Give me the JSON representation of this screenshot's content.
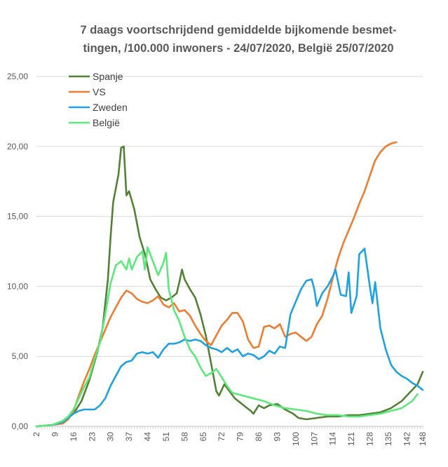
{
  "chart_data": {
    "type": "line",
    "title_line1": "7 daags voortschrijdend gemiddelde bijkomende besmet-",
    "title_line2": "tingen, /100.000 inwoners - 24/07/2020,  België 25/07/2020",
    "xlabel": "",
    "ylabel": "",
    "xlim": [
      2,
      148
    ],
    "ylim": [
      0,
      25
    ],
    "yticks": [
      "0,00",
      "5,00",
      "10,00",
      "15,00",
      "20,00",
      "25,00"
    ],
    "xticks": [
      "2",
      "9",
      "16",
      "23",
      "30",
      "37",
      "44",
      "51",
      "58",
      "65",
      "72",
      "79",
      "86",
      "93",
      "100",
      "107",
      "114",
      "121",
      "128",
      "135",
      "142",
      "148"
    ],
    "grid": true,
    "legend_position": "top-left",
    "series": [
      {
        "name": "Spanje",
        "color": "#538135",
        "points": [
          [
            2,
            0.0
          ],
          [
            8,
            0.1
          ],
          [
            12,
            0.3
          ],
          [
            16,
            0.9
          ],
          [
            19,
            1.8
          ],
          [
            22,
            3.3
          ],
          [
            25,
            5.3
          ],
          [
            27,
            7.0
          ],
          [
            29,
            10.5
          ],
          [
            30,
            13.5
          ],
          [
            31,
            16.0
          ],
          [
            33,
            18.0
          ],
          [
            34,
            19.9
          ],
          [
            35,
            20.0
          ],
          [
            36,
            16.5
          ],
          [
            37,
            16.8
          ],
          [
            39,
            15.5
          ],
          [
            41,
            13.5
          ],
          [
            43,
            12.3
          ],
          [
            45,
            10.5
          ],
          [
            47,
            9.8
          ],
          [
            49,
            9.2
          ],
          [
            51,
            9.0
          ],
          [
            53,
            9.2
          ],
          [
            55,
            9.5
          ],
          [
            56,
            10.3
          ],
          [
            57,
            11.2
          ],
          [
            58,
            10.5
          ],
          [
            60,
            9.8
          ],
          [
            62,
            9.2
          ],
          [
            64,
            8.0
          ],
          [
            66,
            6.5
          ],
          [
            68,
            4.5
          ],
          [
            70,
            2.5
          ],
          [
            71,
            2.2
          ],
          [
            73,
            3.0
          ],
          [
            75,
            2.5
          ],
          [
            77,
            2.0
          ],
          [
            79,
            1.7
          ],
          [
            81,
            1.4
          ],
          [
            83,
            1.1
          ],
          [
            84,
            0.9
          ],
          [
            86,
            1.5
          ],
          [
            88,
            1.3
          ],
          [
            90,
            1.5
          ],
          [
            93,
            1.6
          ],
          [
            96,
            1.2
          ],
          [
            99,
            0.9
          ],
          [
            101,
            0.6
          ],
          [
            104,
            0.5
          ],
          [
            108,
            0.6
          ],
          [
            112,
            0.7
          ],
          [
            116,
            0.7
          ],
          [
            120,
            0.8
          ],
          [
            124,
            0.8
          ],
          [
            128,
            0.9
          ],
          [
            132,
            1.0
          ],
          [
            136,
            1.3
          ],
          [
            140,
            1.8
          ],
          [
            143,
            2.4
          ],
          [
            146,
            3.0
          ],
          [
            148,
            3.9
          ]
        ]
      },
      {
        "name": "VS",
        "color": "#ED7D31",
        "points": [
          [
            2,
            0.0
          ],
          [
            8,
            0.1
          ],
          [
            12,
            0.2
          ],
          [
            14,
            0.5
          ],
          [
            16,
            1.1
          ],
          [
            18,
            2.2
          ],
          [
            20,
            3.2
          ],
          [
            22,
            4.1
          ],
          [
            24,
            5.1
          ],
          [
            26,
            6.0
          ],
          [
            28,
            6.9
          ],
          [
            30,
            7.8
          ],
          [
            32,
            8.5
          ],
          [
            34,
            9.2
          ],
          [
            36,
            9.7
          ],
          [
            38,
            9.5
          ],
          [
            40,
            9.1
          ],
          [
            42,
            8.9
          ],
          [
            44,
            8.8
          ],
          [
            46,
            9.0
          ],
          [
            48,
            9.3
          ],
          [
            50,
            8.7
          ],
          [
            52,
            8.5
          ],
          [
            54,
            8.8
          ],
          [
            56,
            8.2
          ],
          [
            58,
            8.3
          ],
          [
            60,
            7.9
          ],
          [
            62,
            7.2
          ],
          [
            64,
            6.6
          ],
          [
            66,
            6.1
          ],
          [
            68,
            5.8
          ],
          [
            70,
            6.5
          ],
          [
            72,
            7.2
          ],
          [
            74,
            7.6
          ],
          [
            76,
            8.1
          ],
          [
            78,
            8.1
          ],
          [
            80,
            7.5
          ],
          [
            82,
            6.2
          ],
          [
            84,
            5.6
          ],
          [
            86,
            5.7
          ],
          [
            88,
            7.1
          ],
          [
            90,
            7.2
          ],
          [
            92,
            7.0
          ],
          [
            94,
            7.3
          ],
          [
            96,
            6.4
          ],
          [
            98,
            6.6
          ],
          [
            100,
            6.7
          ],
          [
            102,
            6.4
          ],
          [
            104,
            6.1
          ],
          [
            106,
            6.4
          ],
          [
            108,
            7.3
          ],
          [
            110,
            7.9
          ],
          [
            112,
            9.1
          ],
          [
            114,
            10.6
          ],
          [
            116,
            12.0
          ],
          [
            118,
            13.1
          ],
          [
            120,
            14.0
          ],
          [
            122,
            14.9
          ],
          [
            124,
            15.9
          ],
          [
            126,
            16.8
          ],
          [
            128,
            17.9
          ],
          [
            130,
            19.0
          ],
          [
            132,
            19.6
          ],
          [
            134,
            20.0
          ],
          [
            136,
            20.2
          ],
          [
            138,
            20.3
          ]
        ]
      },
      {
        "name": "Zweden",
        "color": "#1FA2DF",
        "points": [
          [
            2,
            0.0
          ],
          [
            8,
            0.1
          ],
          [
            12,
            0.3
          ],
          [
            14,
            0.6
          ],
          [
            16,
            0.9
          ],
          [
            18,
            1.1
          ],
          [
            20,
            1.2
          ],
          [
            24,
            1.2
          ],
          [
            26,
            1.5
          ],
          [
            28,
            2.0
          ],
          [
            30,
            2.9
          ],
          [
            32,
            3.6
          ],
          [
            34,
            4.3
          ],
          [
            36,
            4.6
          ],
          [
            38,
            4.7
          ],
          [
            40,
            5.2
          ],
          [
            42,
            5.3
          ],
          [
            44,
            5.2
          ],
          [
            46,
            5.3
          ],
          [
            48,
            4.9
          ],
          [
            50,
            5.5
          ],
          [
            52,
            5.9
          ],
          [
            54,
            5.9
          ],
          [
            56,
            6.0
          ],
          [
            58,
            6.2
          ],
          [
            60,
            6.1
          ],
          [
            62,
            6.2
          ],
          [
            64,
            6.1
          ],
          [
            66,
            5.8
          ],
          [
            68,
            5.6
          ],
          [
            70,
            5.5
          ],
          [
            72,
            5.3
          ],
          [
            74,
            5.6
          ],
          [
            76,
            5.3
          ],
          [
            78,
            5.5
          ],
          [
            80,
            5.0
          ],
          [
            82,
            5.2
          ],
          [
            84,
            5.1
          ],
          [
            86,
            4.8
          ],
          [
            88,
            5.0
          ],
          [
            90,
            5.4
          ],
          [
            92,
            5.2
          ],
          [
            94,
            5.7
          ],
          [
            96,
            5.6
          ],
          [
            98,
            8.0
          ],
          [
            100,
            8.9
          ],
          [
            102,
            9.8
          ],
          [
            104,
            10.4
          ],
          [
            106,
            10.5
          ],
          [
            107,
            9.8
          ],
          [
            108,
            8.6
          ],
          [
            110,
            9.5
          ],
          [
            112,
            10.0
          ],
          [
            114,
            10.7
          ],
          [
            115,
            11.2
          ],
          [
            117,
            9.4
          ],
          [
            119,
            9.3
          ],
          [
            120,
            11.0
          ],
          [
            121,
            8.1
          ],
          [
            123,
            9.3
          ],
          [
            124,
            12.3
          ],
          [
            126,
            12.7
          ],
          [
            128,
            10.0
          ],
          [
            129,
            8.8
          ],
          [
            130,
            10.3
          ],
          [
            132,
            7.0
          ],
          [
            134,
            5.5
          ],
          [
            136,
            4.4
          ],
          [
            138,
            3.9
          ],
          [
            140,
            3.6
          ],
          [
            142,
            3.4
          ],
          [
            144,
            3.1
          ],
          [
            146,
            2.9
          ],
          [
            148,
            2.6
          ]
        ]
      },
      {
        "name": "België",
        "color": "#5CE87A",
        "points": [
          [
            2,
            0.0
          ],
          [
            8,
            0.1
          ],
          [
            12,
            0.4
          ],
          [
            14,
            0.7
          ],
          [
            16,
            1.2
          ],
          [
            18,
            2.0
          ],
          [
            20,
            2.8
          ],
          [
            22,
            3.5
          ],
          [
            24,
            4.8
          ],
          [
            26,
            6.0
          ],
          [
            28,
            8.0
          ],
          [
            30,
            10.2
          ],
          [
            32,
            11.5
          ],
          [
            34,
            11.8
          ],
          [
            36,
            11.2
          ],
          [
            37,
            12.0
          ],
          [
            38,
            11.2
          ],
          [
            40,
            12.1
          ],
          [
            42,
            12.5
          ],
          [
            43,
            11.2
          ],
          [
            44,
            12.8
          ],
          [
            46,
            11.8
          ],
          [
            48,
            10.8
          ],
          [
            50,
            11.7
          ],
          [
            51,
            12.4
          ],
          [
            52,
            9.8
          ],
          [
            54,
            8.3
          ],
          [
            56,
            7.5
          ],
          [
            58,
            6.4
          ],
          [
            60,
            5.5
          ],
          [
            62,
            5.0
          ],
          [
            64,
            4.2
          ],
          [
            66,
            3.6
          ],
          [
            68,
            3.8
          ],
          [
            70,
            4.1
          ],
          [
            72,
            3.5
          ],
          [
            74,
            2.9
          ],
          [
            76,
            2.4
          ],
          [
            80,
            2.2
          ],
          [
            84,
            2.0
          ],
          [
            88,
            1.8
          ],
          [
            92,
            1.5
          ],
          [
            96,
            1.3
          ],
          [
            100,
            1.2
          ],
          [
            104,
            1.1
          ],
          [
            108,
            0.9
          ],
          [
            112,
            0.8
          ],
          [
            116,
            0.8
          ],
          [
            120,
            0.7
          ],
          [
            124,
            0.7
          ],
          [
            128,
            0.8
          ],
          [
            132,
            0.9
          ],
          [
            136,
            1.1
          ],
          [
            140,
            1.3
          ],
          [
            144,
            1.8
          ],
          [
            146,
            2.3
          ]
        ]
      }
    ]
  }
}
